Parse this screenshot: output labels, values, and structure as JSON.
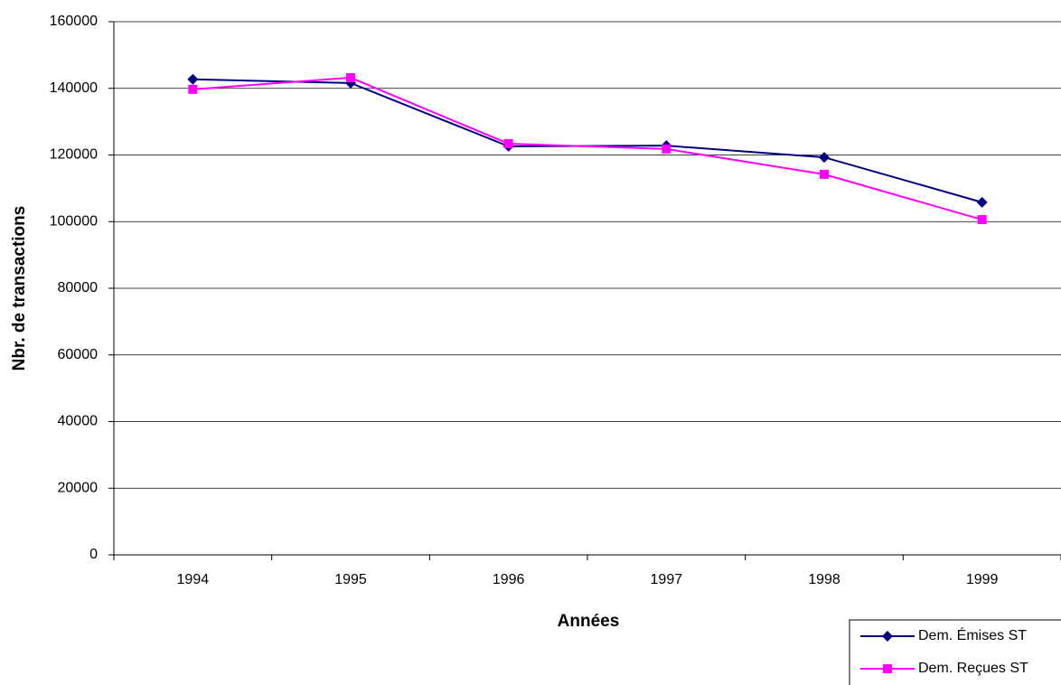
{
  "chart_data": {
    "type": "line",
    "categories": [
      "1994",
      "1995",
      "1996",
      "1997",
      "1998",
      "1999"
    ],
    "x_label": "Années",
    "y_label": "Nbr. de transactions",
    "series": [
      {
        "name": "Dem. Émises ST",
        "color": "#000080",
        "marker": "diamond",
        "values": [
          142700,
          141600,
          122600,
          122800,
          119300,
          105800
        ]
      },
      {
        "name": "Dem. Reçues ST",
        "color": "#ff00ff",
        "marker": "square",
        "values": [
          139700,
          143200,
          123400,
          121800,
          114200,
          100600
        ]
      }
    ],
    "ylim": [
      0,
      160000
    ],
    "yticks": [
      0,
      20000,
      40000,
      60000,
      80000,
      100000,
      120000,
      140000,
      160000
    ],
    "grid": true,
    "legend": "bottom-right"
  }
}
